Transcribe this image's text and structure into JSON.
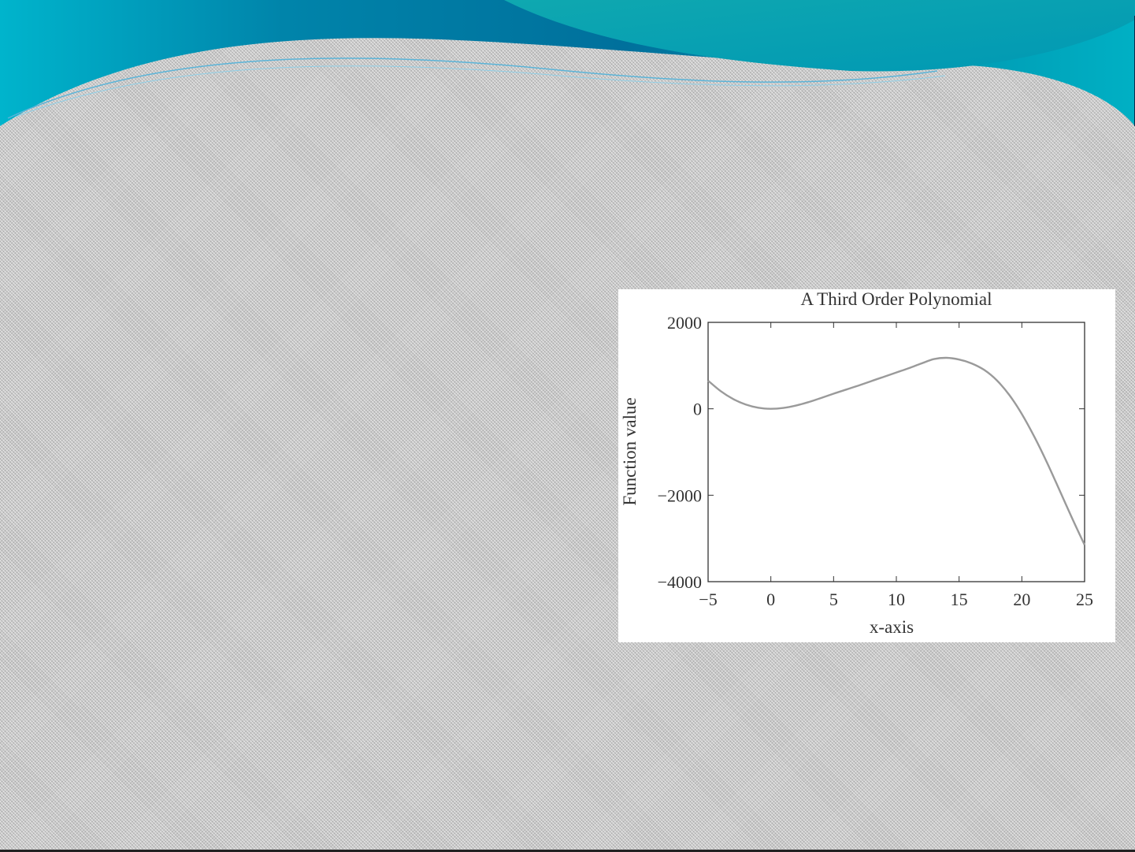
{
  "slide": {
    "background": "#c8c8c8",
    "accent": "#00a0b8",
    "accent_dark": "#006a9a"
  },
  "chart_data": {
    "type": "line",
    "title": "A Third Order Polynomial",
    "xlabel": "x-axis",
    "ylabel": "Function value",
    "xlim": [
      -5,
      25
    ],
    "ylim": [
      -4000,
      2000
    ],
    "xticks": [
      -5,
      0,
      5,
      10,
      15,
      20,
      25
    ],
    "xtick_labels": [
      "−5",
      "0",
      "5",
      "10",
      "15",
      "20",
      "25"
    ],
    "yticks": [
      -4000,
      -2000,
      0,
      2000
    ],
    "ytick_labels": [
      "−4000",
      "−2000",
      "0",
      "2000"
    ],
    "grid": false,
    "line_color": "#9a9a9a",
    "series": [
      {
        "x": [
          -5,
          -4,
          -3,
          -2,
          -1,
          0,
          1,
          2,
          3,
          4,
          5,
          6,
          7,
          8,
          9,
          10,
          11,
          12,
          13,
          14,
          15,
          16,
          17,
          18,
          19,
          20,
          21,
          22,
          23,
          24,
          25
        ],
        "values": [
          650,
          410,
          225,
          100,
          25,
          0,
          20,
          75,
          155,
          250,
          350,
          445,
          540,
          640,
          740,
          840,
          940,
          1050,
          1150,
          1180,
          1140,
          1050,
          900,
          660,
          320,
          -120,
          -650,
          -1240,
          -1880,
          -2530,
          -3150
        ]
      }
    ]
  }
}
